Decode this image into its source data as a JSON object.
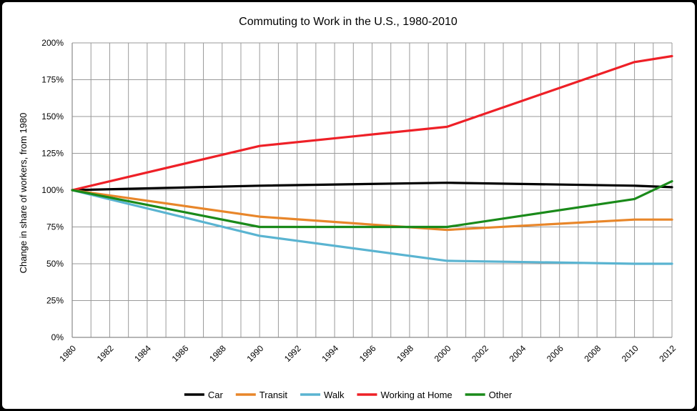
{
  "chart_data": {
    "type": "line",
    "title": "Commuting to Work in the U.S., 1980-2010",
    "xlabel": "",
    "ylabel": "Change in share of workers, from 1980",
    "x_tick_labels": [
      "1980",
      "1982",
      "1984",
      "1986",
      "1988",
      "1990",
      "1992",
      "1994",
      "1996",
      "1998",
      "2000",
      "2002",
      "2004",
      "2006",
      "2008",
      "2010",
      "2012"
    ],
    "y_tick_labels": [
      "0%",
      "25%",
      "50%",
      "75%",
      "100%",
      "125%",
      "150%",
      "175%",
      "200%"
    ],
    "xlim": [
      1980,
      2012
    ],
    "ylim": [
      0,
      200
    ],
    "grid": true,
    "legend_position": "bottom",
    "x": [
      1980,
      1990,
      2000,
      2010,
      2012
    ],
    "series": [
      {
        "name": "Car",
        "color": "#000000",
        "values": [
          100,
          103,
          105,
          103,
          102
        ]
      },
      {
        "name": "Transit",
        "color": "#e8862a",
        "values": [
          100,
          82,
          73,
          80,
          80
        ]
      },
      {
        "name": "Walk",
        "color": "#5ab4d1",
        "values": [
          100,
          69,
          52,
          50,
          50
        ]
      },
      {
        "name": "Working at Home",
        "color": "#ee2027",
        "values": [
          100,
          130,
          143,
          187,
          191
        ]
      },
      {
        "name": "Other",
        "color": "#1a8a1a",
        "values": [
          100,
          75,
          75,
          94,
          106
        ]
      }
    ]
  }
}
